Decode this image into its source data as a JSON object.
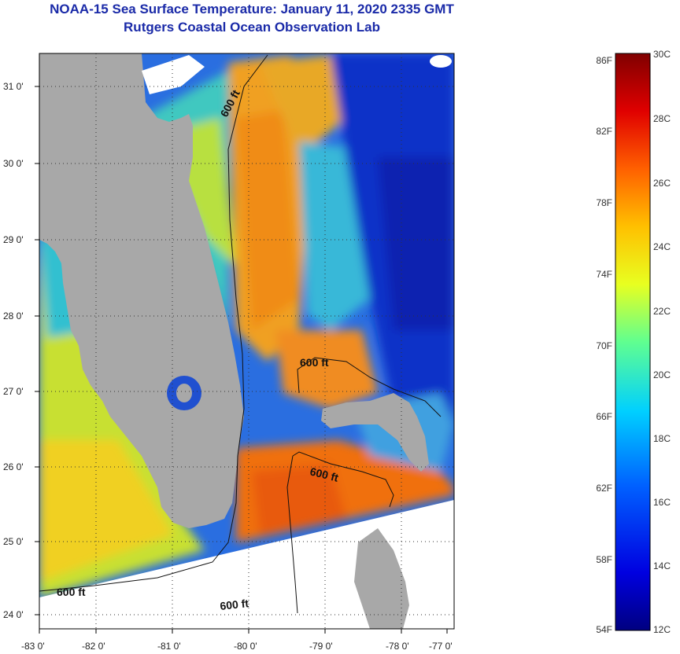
{
  "title": {
    "line1": "NOAA-15 Sea Surface Temperature:  January 11, 2020 2335 GMT",
    "line2": "Rutgers Coastal Ocean Observation Lab"
  },
  "map": {
    "lon_ticks": [
      "-83 0'",
      "-82 0'",
      "-81 0'",
      "-80 0'",
      "-79 0'",
      "-78 0'",
      "-77 0'"
    ],
    "lat_ticks": [
      "31 0'",
      "30 0'",
      "29 0'",
      "28 0'",
      "27 0'",
      "26 0'",
      "25 0'",
      "24 0'"
    ],
    "contour_labels": [
      "600 ft",
      "600 ft",
      "600 ft",
      "600 ft",
      "600 ft"
    ],
    "colors": {
      "land": "#a8a8a8",
      "cloud": "#ffffff",
      "warm": "#f07a10",
      "cold": "#0820c0"
    }
  },
  "colorbar": {
    "fahrenheit": [
      "86F",
      "82F",
      "78F",
      "74F",
      "70F",
      "66F",
      "62F",
      "58F",
      "54F"
    ],
    "celsius": [
      "30C",
      "28C",
      "26C",
      "24C",
      "22C",
      "20C",
      "18C",
      "16C",
      "14C",
      "12C"
    ]
  }
}
